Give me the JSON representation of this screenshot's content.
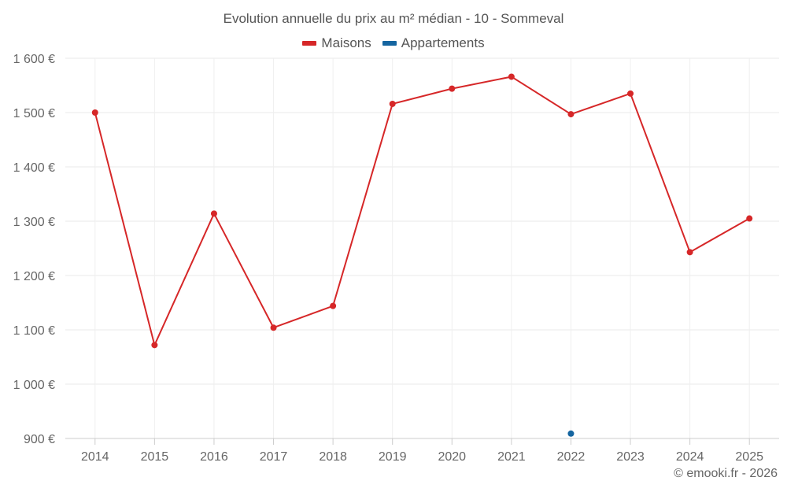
{
  "chart_data": {
    "type": "line",
    "title": "Evolution annuelle du prix au m² médian - 10 - Sommeval",
    "categories": [
      "2014",
      "2015",
      "2016",
      "2017",
      "2018",
      "2019",
      "2020",
      "2021",
      "2022",
      "2023",
      "2024",
      "2025"
    ],
    "series": [
      {
        "name": "Maisons",
        "color": "#d62728",
        "values": [
          1500,
          1072,
          1314,
          1104,
          1144,
          1516,
          1544,
          1566,
          1497,
          1535,
          1243,
          1305
        ]
      },
      {
        "name": "Appartements",
        "color": "#1565a0",
        "values": [
          null,
          null,
          null,
          null,
          null,
          null,
          null,
          null,
          909,
          null,
          null,
          null
        ]
      }
    ],
    "yticks": [
      900,
      1000,
      1100,
      1200,
      1300,
      1400,
      1500,
      1600
    ],
    "ytick_labels": [
      "900 €",
      "1 000 €",
      "1 100 €",
      "1 200 €",
      "1 300 €",
      "1 400 €",
      "1 500 €",
      "1 600 €"
    ],
    "ylim": [
      900,
      1600
    ],
    "xlabel": "",
    "ylabel": "",
    "grid": true,
    "legend_position": "top-center"
  },
  "credit": "© emooki.fr - 2026"
}
